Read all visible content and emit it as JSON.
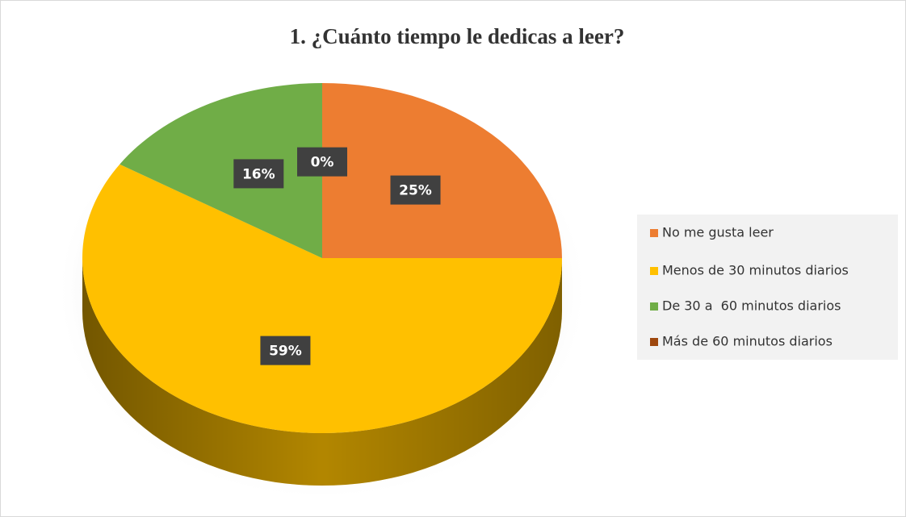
{
  "chart_data": {
    "type": "pie",
    "title": "1. ¿Cuánto tiempo le dedicas a leer?",
    "categories": [
      "No me gusta leer",
      "Menos de 30 minutos diarios",
      "De 30 a  60 minutos diarios",
      "Más de 60 minutos diarios"
    ],
    "values": [
      25,
      59,
      16,
      0
    ],
    "value_labels": [
      "25%",
      "59%",
      "16%",
      "0%"
    ],
    "colors": [
      "#ED7D31",
      "#FFC000",
      "#70AD47",
      "#9E480E"
    ],
    "legend": "right"
  }
}
